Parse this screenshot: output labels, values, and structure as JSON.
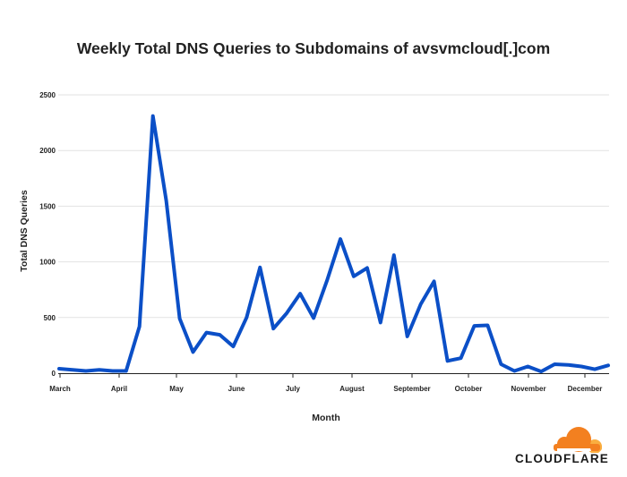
{
  "chart_data": {
    "type": "line",
    "title": "Weekly Total DNS Queries to Subdomains of avsvmcloud[.]com",
    "xlabel": "Month",
    "ylabel": "Total DNS Queries",
    "x_tick_labels": [
      "March",
      "April",
      "May",
      "June",
      "July",
      "August",
      "September",
      "October",
      "November",
      "December"
    ],
    "y_tick_labels": [
      "0",
      "500",
      "1000",
      "1500",
      "2000",
      "2500"
    ],
    "ylim": [
      0,
      2500
    ],
    "grid": true,
    "line_color": "#0b4fc7",
    "series": [
      {
        "values": [
          40,
          30,
          20,
          30,
          20,
          20,
          420,
          2310,
          1550,
          490,
          190,
          365,
          345,
          240,
          500,
          950,
          400,
          540,
          715,
          495,
          830,
          1205,
          870,
          945,
          455,
          1060,
          330,
          620,
          825,
          110,
          135,
          425,
          430,
          80,
          20,
          60,
          15,
          80,
          75,
          60,
          35,
          70
        ]
      }
    ]
  },
  "brand": {
    "name": "CLOUDFLARE",
    "cloud_color_main": "#f38020",
    "cloud_color_light": "#faae40"
  }
}
